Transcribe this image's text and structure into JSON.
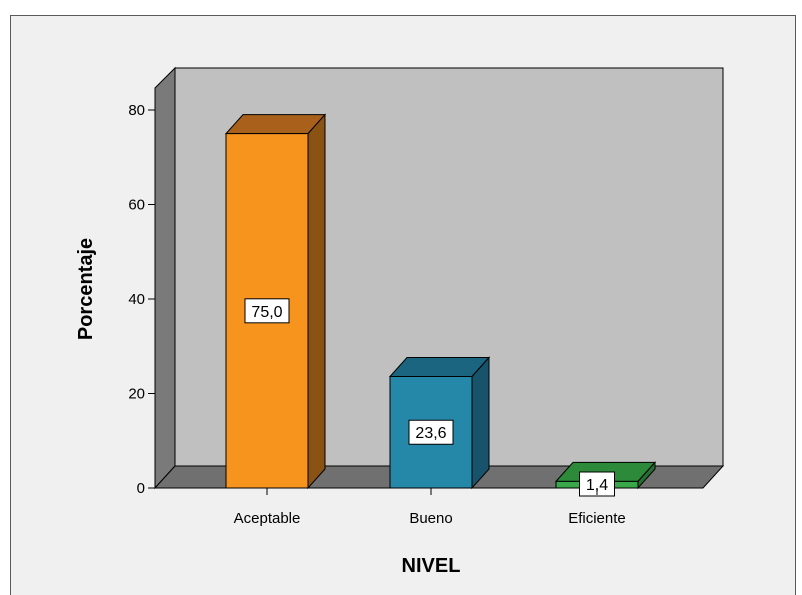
{
  "chart_data": {
    "type": "bar",
    "categories": [
      "Aceptable",
      "Bueno",
      "Eficiente"
    ],
    "values": [
      75.0,
      23.6,
      1.4
    ],
    "data_labels": [
      "75,0",
      "23,6",
      "1,4"
    ],
    "title": "",
    "xlabel": "NIVEL",
    "ylabel": "Porcentaje",
    "ylim": [
      0,
      80
    ],
    "yticks": [
      "0",
      "20",
      "40",
      "60",
      "80"
    ],
    "grid": false,
    "legend": "none",
    "style": "3d",
    "colors": {
      "bars": [
        "#f7941d",
        "#2688a8",
        "#3aa84a"
      ],
      "bar_sides": [
        "#8a5213",
        "#17536a",
        "#237030"
      ],
      "bar_tops": [
        "#a8601a",
        "#1c6580",
        "#2c8a3a"
      ],
      "back_wall": "#c0c0c0",
      "side_wall": "#7a7a7a",
      "floor": "#707070",
      "background": "#f0f0f0"
    }
  }
}
